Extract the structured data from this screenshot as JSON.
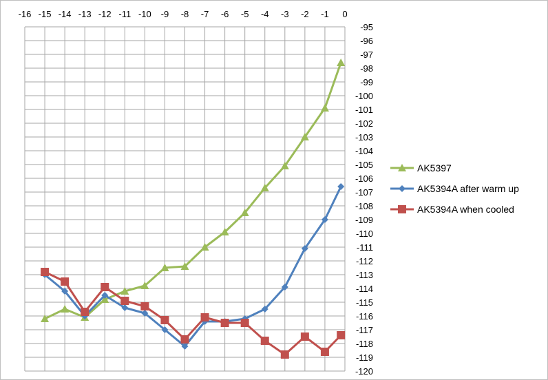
{
  "chart_data": {
    "type": "line",
    "title": "",
    "xlabel": "",
    "ylabel": "",
    "xlim": [
      -16,
      0
    ],
    "ylim": [
      -120,
      -95
    ],
    "x_axis_position": "top",
    "y_axis_position": "right",
    "y_reversed": true,
    "grid": true,
    "legend_position": "right",
    "x_ticks": [
      "-16",
      "-15",
      "-14",
      "-13",
      "-12",
      "-11",
      "-10",
      "-9",
      "-8",
      "-7",
      "-6",
      "-5",
      "-4",
      "-3",
      "-2",
      "-1",
      "0"
    ],
    "y_ticks": [
      "-95",
      "-96",
      "-97",
      "-98",
      "-99",
      "-100",
      "-101",
      "-102",
      "-103",
      "-104",
      "-105",
      "-106",
      "-107",
      "-108",
      "-109",
      "-110",
      "-111",
      "-112",
      "-113",
      "-114",
      "-115",
      "-116",
      "-117",
      "-118",
      "-119",
      "-120"
    ],
    "x": [
      -15,
      -14,
      -13,
      -12,
      -11,
      -10,
      -9,
      -8,
      -7,
      -6,
      -5,
      -4,
      -3,
      -2,
      -1,
      -0.2
    ],
    "series": [
      {
        "name": "AK5397",
        "color": "#9bbb59",
        "marker": "triangle",
        "values": [
          -116.2,
          -115.5,
          -116.1,
          -114.8,
          -114.2,
          -113.8,
          -112.5,
          -112.4,
          -111.0,
          -109.9,
          -108.5,
          -106.7,
          -105.1,
          -103.0,
          -100.9,
          -97.6
        ]
      },
      {
        "name": "AK5394A after warm up",
        "color": "#4f81bd",
        "marker": "diamond",
        "values": [
          -113.0,
          -114.2,
          -116.0,
          -114.5,
          -115.4,
          -115.8,
          -117.0,
          -118.2,
          -116.4,
          -116.4,
          -116.2,
          -115.5,
          -113.9,
          -111.1,
          -109.0,
          -106.6
        ]
      },
      {
        "name": "AK5394A when cooled",
        "color": "#c0504d",
        "marker": "square",
        "values": [
          -112.8,
          -113.5,
          -115.7,
          -113.9,
          -114.9,
          -115.3,
          -116.3,
          -117.7,
          -116.1,
          -116.5,
          -116.5,
          -117.8,
          -118.8,
          -117.5,
          -118.6,
          -117.4
        ]
      }
    ]
  }
}
